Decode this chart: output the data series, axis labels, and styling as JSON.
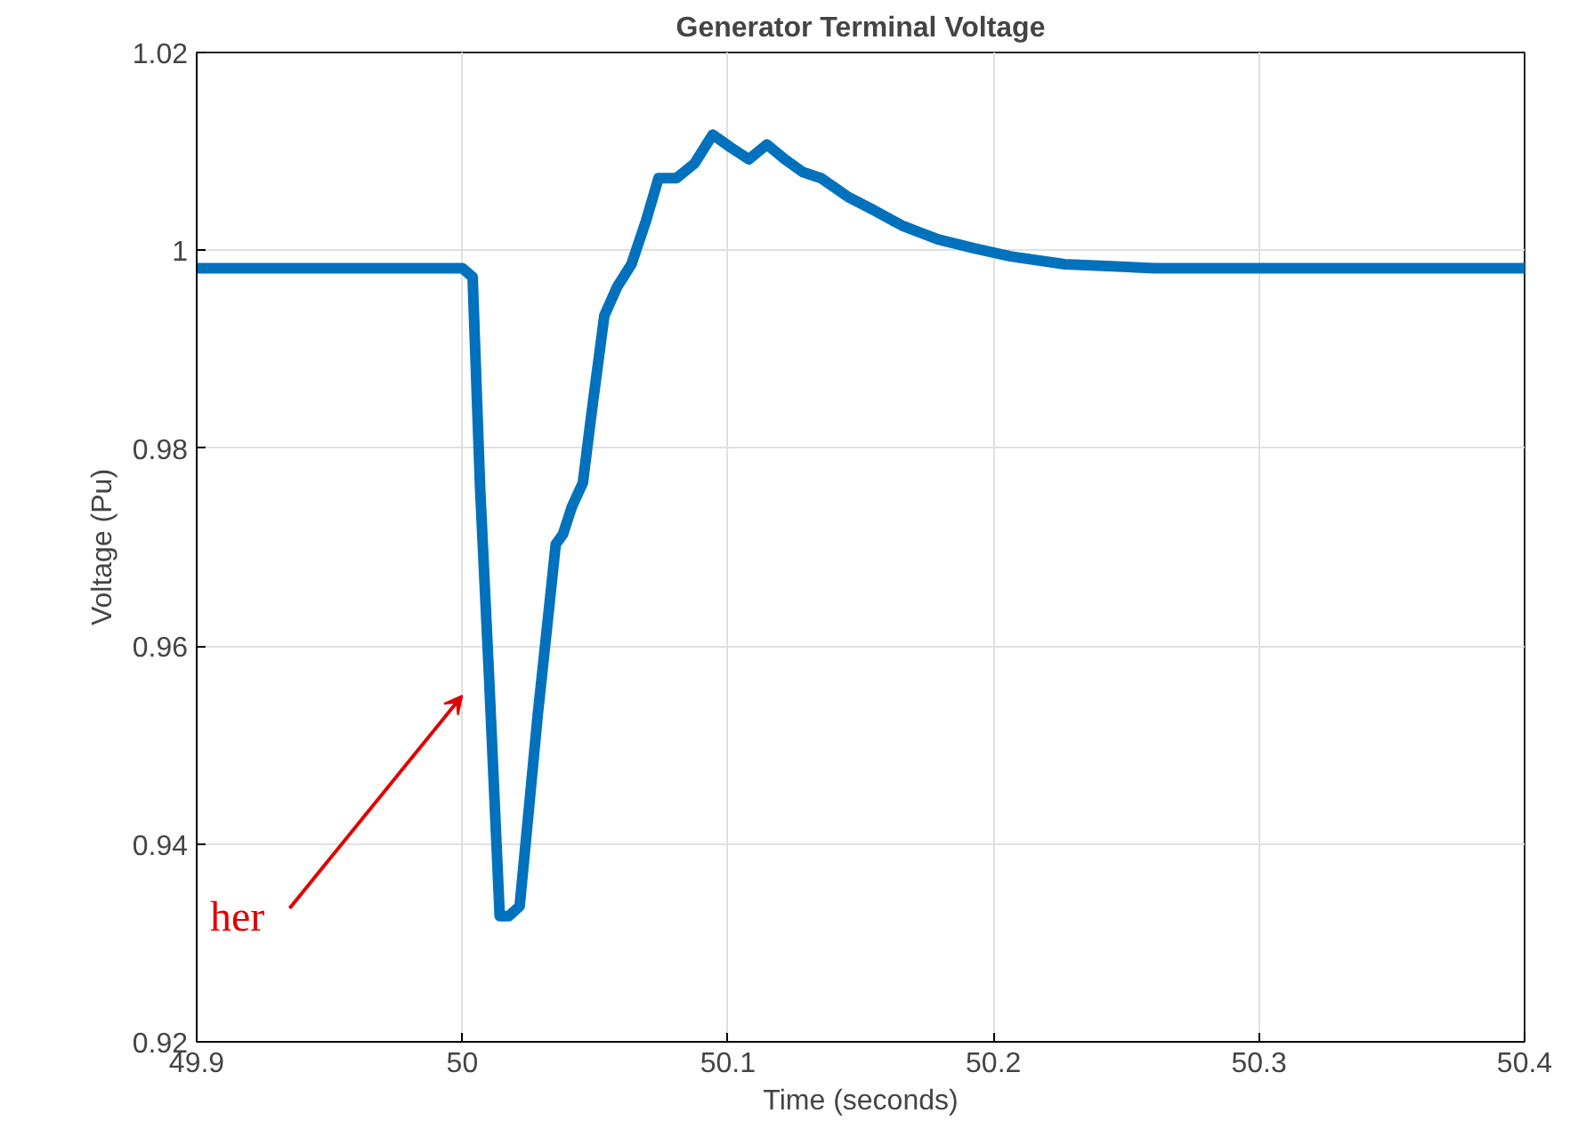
{
  "chart_data": {
    "type": "line",
    "title": "Generator Terminal Voltage",
    "xlabel": "Time (seconds)",
    "ylabel": "Voltage (Pu)",
    "x": [
      49.9,
      50.0,
      50.0039,
      50.0067,
      50.0101,
      50.0141,
      50.0175,
      50.0216,
      50.025,
      50.0284,
      50.0318,
      50.0352,
      50.0379,
      50.0413,
      50.0454,
      50.0488,
      50.0535,
      50.0583,
      50.0637,
      50.0692,
      50.0739,
      50.0807,
      50.0875,
      50.0943,
      50.1011,
      50.1079,
      50.1147,
      50.1215,
      50.1283,
      50.1351,
      50.1453,
      50.1554,
      50.1656,
      50.1792,
      50.1928,
      50.2064,
      50.2268,
      50.2607,
      50.4
    ],
    "series": [
      {
        "color": "#0072bd",
        "values": [
          0.9982,
          0.9982,
          0.9973,
          0.9761,
          0.9568,
          0.9327,
          0.9327,
          0.9337,
          0.9433,
          0.953,
          0.9616,
          0.9703,
          0.9713,
          0.9741,
          0.9765,
          0.9838,
          0.9934,
          0.9963,
          0.9986,
          1.003,
          1.0073,
          1.0073,
          1.0088,
          1.0117,
          1.0104,
          1.0092,
          1.0107,
          1.0092,
          1.0079,
          1.0073,
          1.0054,
          1.004,
          1.0025,
          1.0011,
          1.0002,
          0.9994,
          0.9986,
          0.9982,
          0.9982
        ]
      }
    ],
    "xlim": [
      49.9,
      50.4
    ],
    "xticks": [
      49.9,
      50,
      50.1,
      50.2,
      50.3,
      50.4
    ],
    "ylim": [
      0.92,
      1.02
    ],
    "yticks": [
      0.92,
      0.94,
      0.96,
      0.98,
      1,
      1.02
    ],
    "grid": true,
    "line_style": "solid",
    "marker": "none",
    "annotations": [
      "her"
    ]
  }
}
